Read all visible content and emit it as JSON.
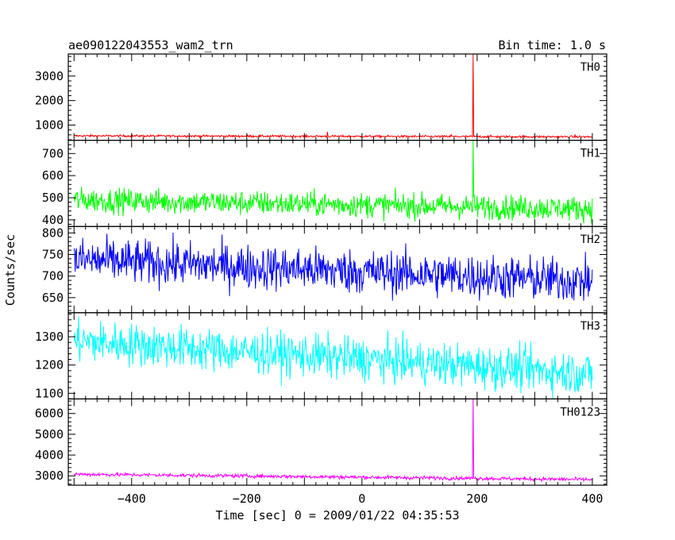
{
  "chart_data": {
    "type": "line",
    "title": "ae090122043553_wam2_trn",
    "subtitle": "Bin time: 1.0 s",
    "xlabel": "Time [sec] 0 = 2009/01/22 04:35:53",
    "ylabel": "Counts/sec",
    "xlim": [
      -510,
      425
    ],
    "x_ticks": [
      -400,
      -200,
      0,
      200,
      400
    ],
    "x_tick_labels": [
      "−400",
      "−200",
      "0",
      "200",
      "400"
    ],
    "x_range": [
      -500,
      400
    ],
    "burst_time": 193,
    "grid": false,
    "panels": [
      {
        "name": "TH0",
        "color": "#ff0000",
        "ylim": [
          380,
          3900
        ],
        "y_ticks": [
          1000,
          2000,
          3000
        ],
        "y_tick_labels": [
          "1000",
          "2000",
          "3000"
        ],
        "baseline_start": 560,
        "baseline_end": 520,
        "noise": 22,
        "peak": 3900,
        "spikes": [
          {
            "x": -60,
            "value": 720
          },
          {
            "x": 155,
            "value": 610
          },
          {
            "x": 370,
            "value": 620
          }
        ]
      },
      {
        "name": "TH1",
        "color": "#00ff00",
        "ylim": [
          370,
          760
        ],
        "y_ticks": [
          400,
          500,
          600,
          700
        ],
        "y_tick_labels": [
          "400",
          "500",
          "600",
          "700"
        ],
        "baseline_start": 490,
        "baseline_end": 450,
        "noise": 28,
        "peak": 760,
        "spikes": []
      },
      {
        "name": "TH2",
        "color": "#0000ff",
        "ylim": [
          615,
          815
        ],
        "y_ticks": [
          650,
          700,
          750,
          800
        ],
        "y_tick_labels": [
          "650",
          "700",
          "750",
          "800"
        ],
        "baseline_start": 738,
        "baseline_end": 688,
        "noise": 26,
        "peak": null,
        "spikes": []
      },
      {
        "name": "TH3",
        "color": "#00ffff",
        "ylim": [
          1080,
          1385
        ],
        "y_ticks": [
          1100,
          1200,
          1300
        ],
        "y_tick_labels": [
          "1100",
          "1200",
          "1300"
        ],
        "baseline_start": 1285,
        "baseline_end": 1170,
        "noise": 38,
        "peak": null,
        "spikes": []
      },
      {
        "name": "TH0123",
        "color": "#ff00ff",
        "ylim": [
          2550,
          6700
        ],
        "y_ticks": [
          3000,
          4000,
          5000,
          6000
        ],
        "y_tick_labels": [
          "3000",
          "4000",
          "5000",
          "6000"
        ],
        "baseline_start": 3080,
        "baseline_end": 2820,
        "noise": 45,
        "peak": 6700,
        "spikes": []
      }
    ]
  }
}
